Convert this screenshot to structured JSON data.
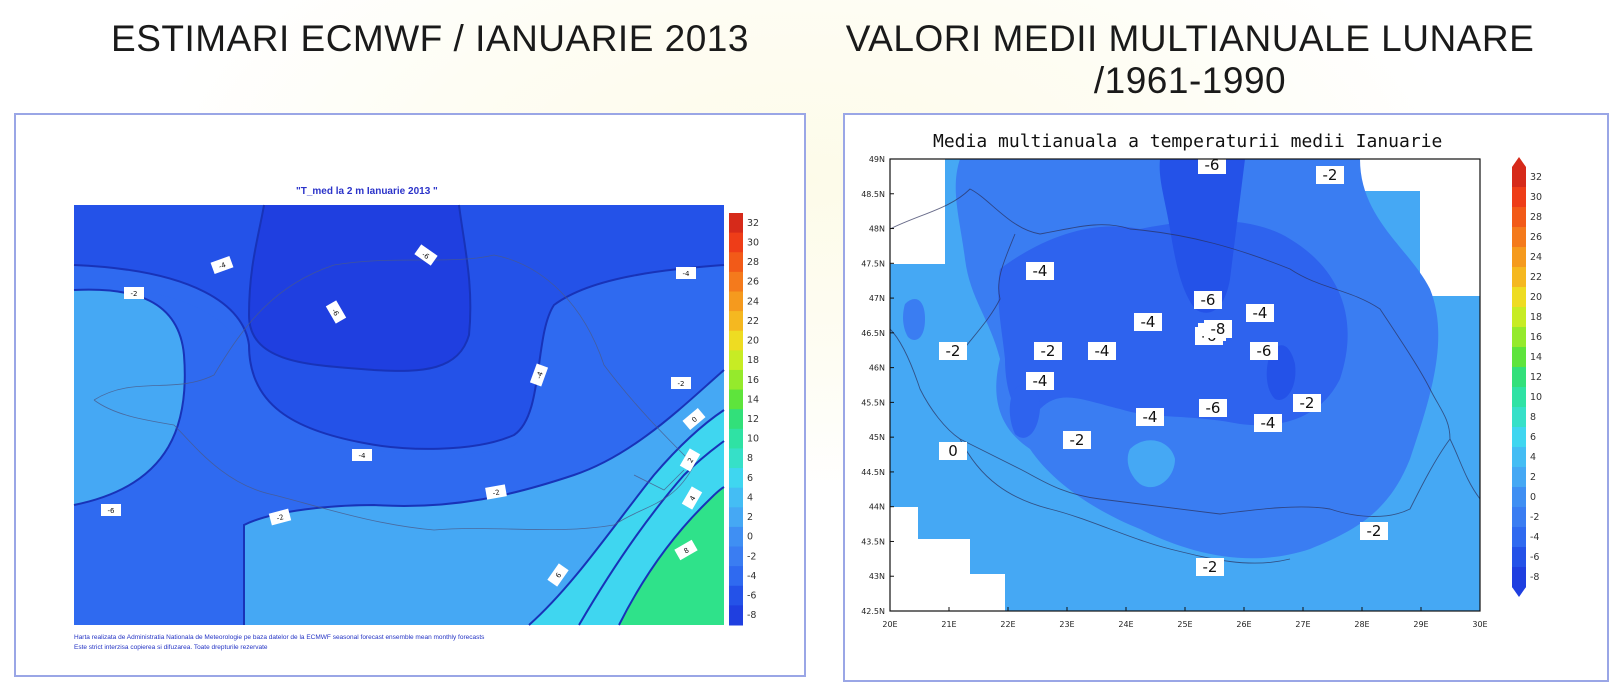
{
  "left": {
    "heading": "ESTIMARI ECMWF / IANUARIE 2013",
    "map_title": "\"T_med la 2 m Ianuarie 2013 \"",
    "footnote": [
      "Harta realizata de Administratia Nationala de Meteorologie pe baza datelor de la ECMWF seasonal forecast ensemble mean monthly forecasts",
      "Este strict interzisa copierea si difuzarea. Toate drepturile rezervate"
    ],
    "colorbar_ticks": [
      "32",
      "30",
      "28",
      "26",
      "24",
      "22",
      "20",
      "18",
      "16",
      "14",
      "12",
      "10",
      "8",
      "6",
      "4",
      "2",
      "0",
      "-2",
      "-4",
      "-6",
      "-8"
    ],
    "contour_labels": [
      "-4",
      "-6",
      "-6",
      "-4",
      "-2",
      "-4",
      "-4",
      "-2",
      "-2",
      "-2",
      "0",
      "2",
      "4",
      "6",
      "8",
      "-6",
      "-2"
    ]
  },
  "right": {
    "heading_line1": "VALORI MEDII MULTIANUALE LUNARE",
    "heading_line2": "/1961-1990",
    "map_title": "Media multianuala a temperaturii medii Ianuarie",
    "lat_ticks": [
      "49N",
      "48.5N",
      "48N",
      "47.5N",
      "47N",
      "46.5N",
      "46N",
      "45.5N",
      "45N",
      "44.5N",
      "44N",
      "43.5N",
      "43N",
      "42.5N"
    ],
    "lon_ticks": [
      "20E",
      "21E",
      "22E",
      "23E",
      "24E",
      "25E",
      "26E",
      "27E",
      "28E",
      "29E",
      "30E"
    ],
    "colorbar_ticks": [
      "32",
      "30",
      "28",
      "26",
      "24",
      "22",
      "20",
      "18",
      "16",
      "14",
      "12",
      "10",
      "8",
      "6",
      "4",
      "2",
      "0",
      "-2",
      "-4",
      "-6",
      "-8"
    ],
    "contour_labels": [
      "-4",
      "-4",
      "-4",
      "-6",
      "-4",
      "-2",
      "-4",
      "-4",
      "-6",
      "-6",
      "-4",
      "-6",
      "-2",
      "-2",
      "0",
      "-2",
      "-6",
      "-4",
      "-2",
      "-2",
      "-2",
      "-8"
    ]
  },
  "colors": {
    "deep_blue": "#1f3fe0",
    "mid_blue": "#2f6af0",
    "light_blue": "#45a8f4",
    "cyan": "#3fd6f0",
    "green": "#2fe28a",
    "frame_border": "#9aa6e6"
  }
}
